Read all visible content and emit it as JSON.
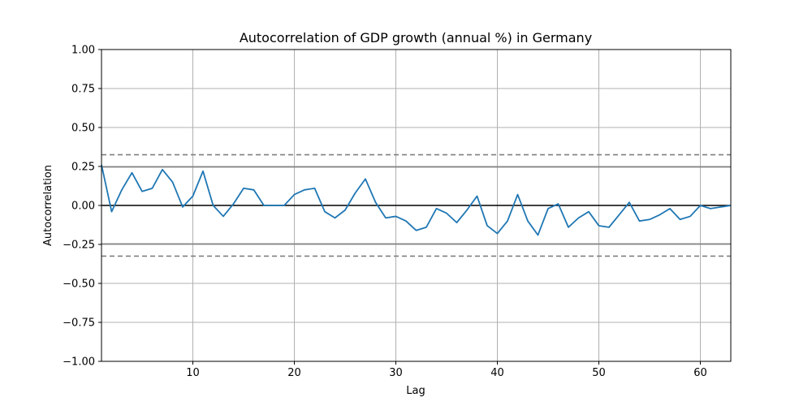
{
  "chart_data": {
    "type": "line",
    "title": "Autocorrelation of GDP growth (annual %) in Germany",
    "xlabel": "Lag",
    "ylabel": "Autocorrelation",
    "xlim": [
      1,
      63
    ],
    "ylim": [
      -1.0,
      1.0
    ],
    "x_ticks": [
      10,
      20,
      30,
      40,
      50,
      60
    ],
    "x_tick_labels": [
      "10",
      "20",
      "30",
      "40",
      "50",
      "60"
    ],
    "y_ticks": [
      -1.0,
      -0.75,
      -0.5,
      -0.25,
      0.0,
      0.25,
      0.5,
      0.75,
      1.0
    ],
    "y_tick_labels": [
      "−1.00",
      "−0.75",
      "−0.50",
      "−0.25",
      "0.00",
      "0.25",
      "0.50",
      "0.75",
      "1.00"
    ],
    "grid": true,
    "confidence_bands": {
      "inner": 0.247,
      "outer": 0.325,
      "inner_color": "#808080",
      "outer_color": "#808080"
    },
    "zero_line_color": "#000000",
    "series": [
      {
        "color": "#1f77b4",
        "x": [
          1,
          2,
          3,
          4,
          5,
          6,
          7,
          8,
          9,
          10,
          11,
          12,
          13,
          14,
          15,
          16,
          17,
          18,
          19,
          20,
          21,
          22,
          23,
          24,
          25,
          26,
          27,
          28,
          29,
          30,
          31,
          32,
          33,
          34,
          35,
          36,
          37,
          38,
          39,
          40,
          41,
          42,
          43,
          44,
          45,
          46,
          47,
          48,
          49,
          50,
          51,
          52,
          53,
          54,
          55,
          56,
          57,
          58,
          59,
          60,
          61,
          62,
          63
        ],
        "values": [
          0.26,
          -0.04,
          0.1,
          0.21,
          0.09,
          0.11,
          0.23,
          0.15,
          -0.01,
          0.06,
          0.22,
          0.0,
          -0.07,
          0.01,
          0.11,
          0.1,
          0.0,
          0.0,
          0.0,
          0.07,
          0.1,
          0.11,
          -0.04,
          -0.08,
          -0.03,
          0.08,
          0.17,
          0.02,
          -0.08,
          -0.07,
          -0.1,
          -0.16,
          -0.14,
          -0.02,
          -0.05,
          -0.11,
          -0.03,
          0.06,
          -0.13,
          -0.18,
          -0.1,
          0.07,
          -0.1,
          -0.19,
          -0.02,
          0.01,
          -0.14,
          -0.08,
          -0.04,
          -0.13,
          -0.14,
          -0.06,
          0.02,
          -0.1,
          -0.09,
          -0.06,
          -0.02,
          -0.09,
          -0.07,
          0.0,
          -0.02,
          -0.01,
          0.0
        ]
      }
    ]
  }
}
